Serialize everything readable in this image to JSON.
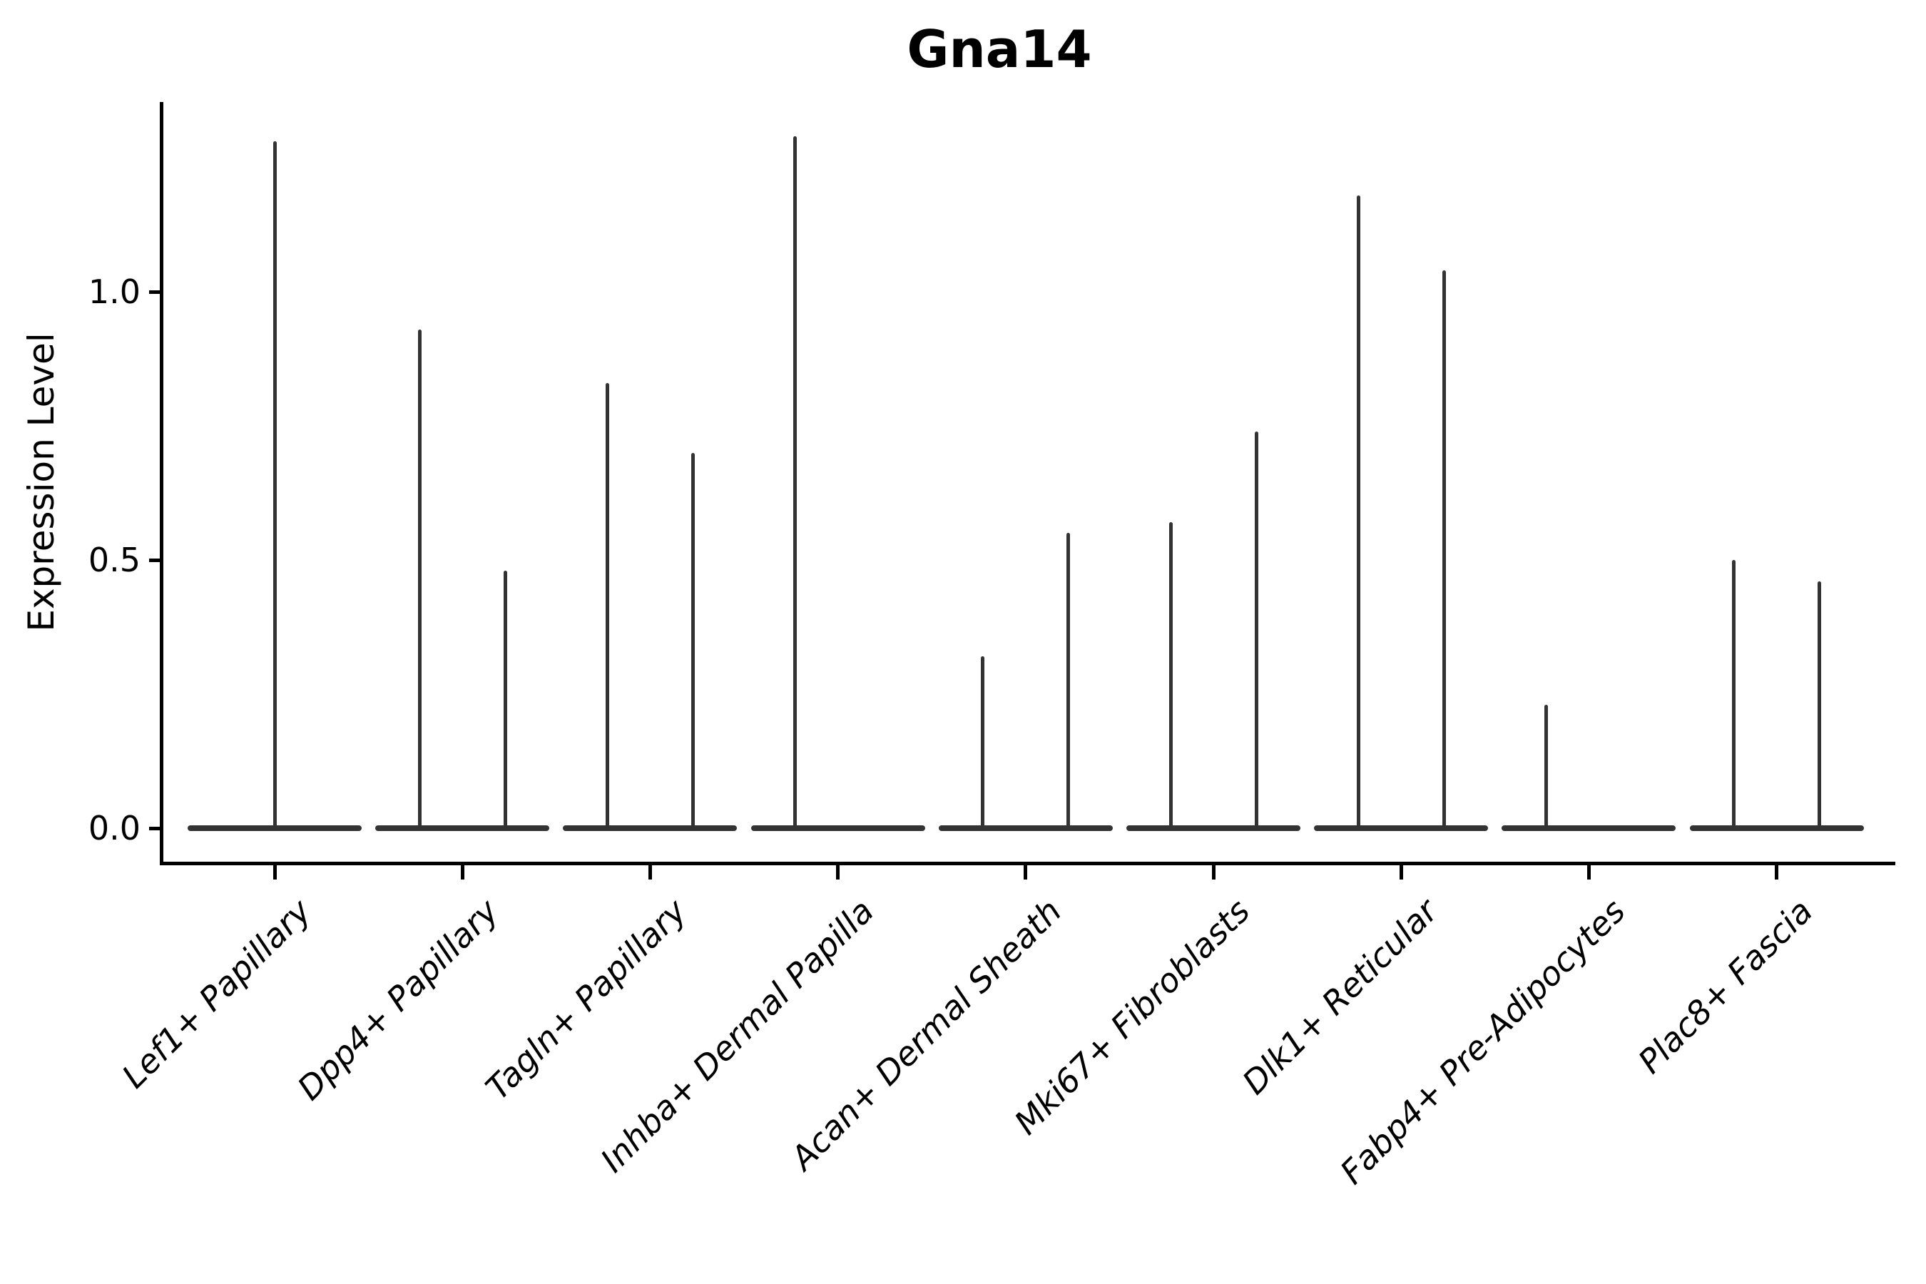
{
  "title": "Gna14",
  "y_axis": {
    "label": "Expression Level",
    "tick_labels": [
      "0.0",
      "0.5",
      "1.0"
    ]
  },
  "colors": {
    "violin": "#333333",
    "axis": "#000000",
    "background": "#ffffff"
  },
  "chart_data": {
    "type": "violin",
    "title": "Gna14",
    "xlabel": "",
    "ylabel": "Expression Level",
    "yticks": [
      0.0,
      0.5,
      1.0
    ],
    "ylim": [
      -0.07,
      1.42
    ],
    "grid": false,
    "legend": false,
    "baseline_value": 0.0,
    "categories": [
      "Lef1+ Papillary",
      "Dpp4+ Papillary",
      "Tagln+ Papillary",
      "Inhba+ Dermal Papilla",
      "Acan+ Dermal Sheath",
      "Mki67+ Fibroblasts",
      "Dlk1+ Reticular",
      "Fabp4+ Pre-Adipocytes",
      "Plac8+ Fascia"
    ],
    "violins": [
      {
        "category": "Lef1+ Papillary",
        "needles": [
          {
            "slot": "center",
            "max": 1.28
          }
        ]
      },
      {
        "category": "Dpp4+ Papillary",
        "needles": [
          {
            "slot": "left",
            "max": 0.93
          },
          {
            "slot": "right",
            "max": 0.48
          }
        ]
      },
      {
        "category": "Tagln+ Papillary",
        "needles": [
          {
            "slot": "left",
            "max": 0.83
          },
          {
            "slot": "right",
            "max": 0.7
          }
        ]
      },
      {
        "category": "Inhba+ Dermal Papilla",
        "needles": [
          {
            "slot": "left",
            "max": 1.29
          }
        ]
      },
      {
        "category": "Acan+ Dermal Sheath",
        "needles": [
          {
            "slot": "left",
            "max": 0.32
          },
          {
            "slot": "right",
            "max": 0.55
          }
        ]
      },
      {
        "category": "Mki67+ Fibroblasts",
        "needles": [
          {
            "slot": "left",
            "max": 0.57
          },
          {
            "slot": "right",
            "max": 0.74
          }
        ]
      },
      {
        "category": "Dlk1+ Reticular",
        "needles": [
          {
            "slot": "left",
            "max": 1.18
          },
          {
            "slot": "right",
            "max": 1.04
          }
        ]
      },
      {
        "category": "Fabp4+ Pre-Adipocytes",
        "needles": [
          {
            "slot": "left",
            "max": 0.23
          }
        ]
      },
      {
        "category": "Plac8+ Fascia",
        "needles": [
          {
            "slot": "left",
            "max": 0.5
          },
          {
            "slot": "right",
            "max": 0.46
          }
        ]
      }
    ]
  }
}
